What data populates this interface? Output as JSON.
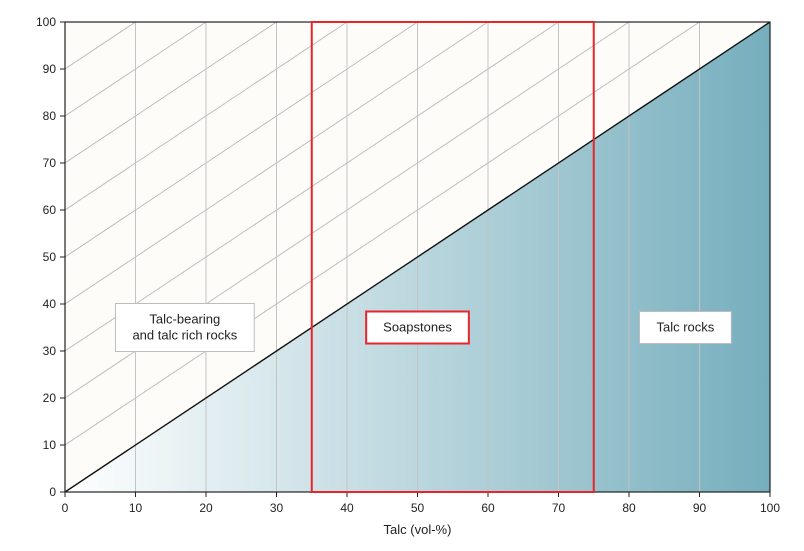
{
  "chart_data": {
    "type": "area",
    "title": "",
    "xlabel": "Talc (vol-%)",
    "ylabel": "",
    "xlim": [
      0,
      100
    ],
    "ylim": [
      0,
      100
    ],
    "x_ticks": [
      "0",
      "10",
      "20",
      "30",
      "40",
      "50",
      "60",
      "70",
      "80",
      "90",
      "100"
    ],
    "y_ticks": [
      "0",
      "10",
      "20",
      "30",
      "40",
      "50",
      "60",
      "70",
      "80",
      "90",
      "100"
    ],
    "grid": true,
    "diagonal_hatch_spacing": 10,
    "series": [
      {
        "points": [
          [
            0,
            0
          ],
          [
            100,
            100
          ]
        ]
      }
    ],
    "highlight_box": {
      "x_from": 35,
      "x_to": 75,
      "y_from": 0,
      "y_to": 100
    },
    "regions": [
      {
        "lines": [
          "Talc-bearing",
          "and talc rich rocks"
        ],
        "x": 17,
        "y": 35,
        "boxed_red": false
      },
      {
        "lines": [
          "Soapstones"
        ],
        "x": 50,
        "y": 35,
        "boxed_red": true
      },
      {
        "lines": [
          "Talc rocks"
        ],
        "x": 88,
        "y": 35,
        "boxed_red": false
      }
    ],
    "colors": {
      "fill_start": "#ffffff",
      "fill_end": "#76aebd",
      "grid": "#c4c4c4",
      "hatch": "#bdbdbd",
      "highlight": "#e8252a",
      "plot_background": "#fdfcf8"
    }
  }
}
